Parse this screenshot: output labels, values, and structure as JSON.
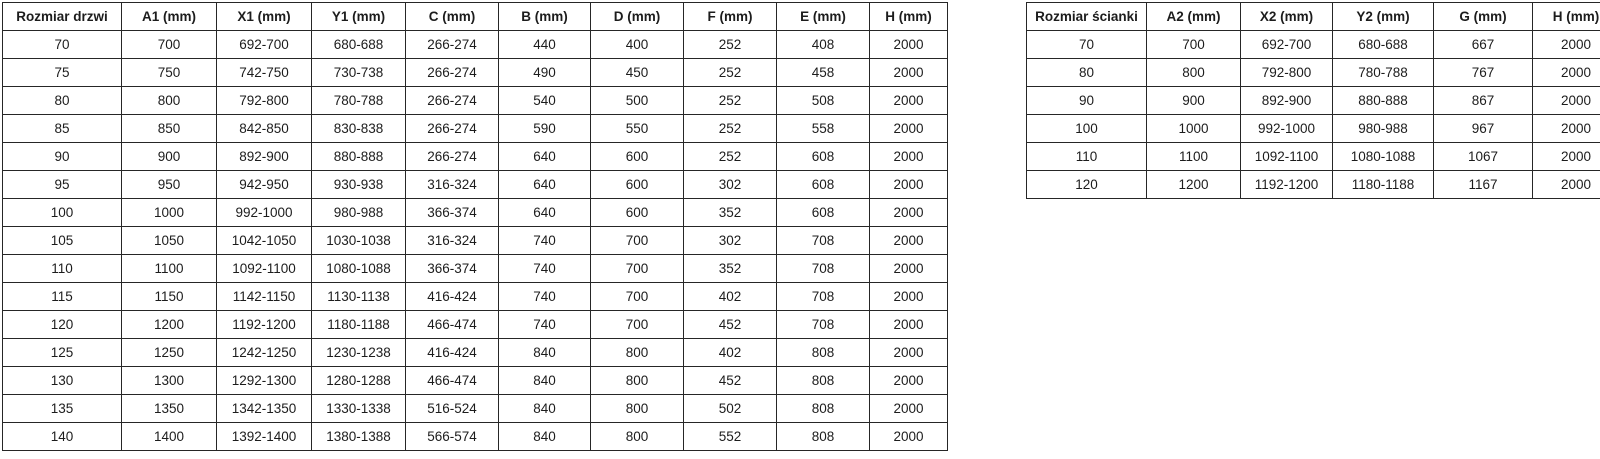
{
  "colors": {
    "background": "#ffffff",
    "border": "#262626",
    "text": "#1c1c1c"
  },
  "tables": {
    "door": {
      "title": "door-sizes-specification",
      "columns": [
        "Rozmiar drzwi",
        "A1 (mm)",
        "X1 (mm)",
        "Y1 (mm)",
        "C (mm)",
        "B (mm)",
        "D (mm)",
        "F (mm)",
        "E (mm)",
        "H (mm)"
      ],
      "rows": [
        [
          "70",
          "700",
          "692-700",
          "680-688",
          "266-274",
          "440",
          "400",
          "252",
          "408",
          "2000"
        ],
        [
          "75",
          "750",
          "742-750",
          "730-738",
          "266-274",
          "490",
          "450",
          "252",
          "458",
          "2000"
        ],
        [
          "80",
          "800",
          "792-800",
          "780-788",
          "266-274",
          "540",
          "500",
          "252",
          "508",
          "2000"
        ],
        [
          "85",
          "850",
          "842-850",
          "830-838",
          "266-274",
          "590",
          "550",
          "252",
          "558",
          "2000"
        ],
        [
          "90",
          "900",
          "892-900",
          "880-888",
          "266-274",
          "640",
          "600",
          "252",
          "608",
          "2000"
        ],
        [
          "95",
          "950",
          "942-950",
          "930-938",
          "316-324",
          "640",
          "600",
          "302",
          "608",
          "2000"
        ],
        [
          "100",
          "1000",
          "992-1000",
          "980-988",
          "366-374",
          "640",
          "600",
          "352",
          "608",
          "2000"
        ],
        [
          "105",
          "1050",
          "1042-1050",
          "1030-1038",
          "316-324",
          "740",
          "700",
          "302",
          "708",
          "2000"
        ],
        [
          "110",
          "1100",
          "1092-1100",
          "1080-1088",
          "366-374",
          "740",
          "700",
          "352",
          "708",
          "2000"
        ],
        [
          "115",
          "1150",
          "1142-1150",
          "1130-1138",
          "416-424",
          "740",
          "700",
          "402",
          "708",
          "2000"
        ],
        [
          "120",
          "1200",
          "1192-1200",
          "1180-1188",
          "466-474",
          "740",
          "700",
          "452",
          "708",
          "2000"
        ],
        [
          "125",
          "1250",
          "1242-1250",
          "1230-1238",
          "416-424",
          "840",
          "800",
          "402",
          "808",
          "2000"
        ],
        [
          "130",
          "1300",
          "1292-1300",
          "1280-1288",
          "466-474",
          "840",
          "800",
          "452",
          "808",
          "2000"
        ],
        [
          "135",
          "1350",
          "1342-1350",
          "1330-1338",
          "516-524",
          "840",
          "800",
          "502",
          "808",
          "2000"
        ],
        [
          "140",
          "1400",
          "1392-1400",
          "1380-1388",
          "566-574",
          "840",
          "800",
          "552",
          "808",
          "2000"
        ]
      ]
    },
    "wall": {
      "title": "wall-sizes-specification",
      "columns": [
        "Rozmiar ścianki",
        "A2 (mm)",
        "X2 (mm)",
        "Y2 (mm)",
        "G (mm)",
        "H (mm)"
      ],
      "rows": [
        [
          "70",
          "700",
          "692-700",
          "680-688",
          "667",
          "2000"
        ],
        [
          "80",
          "800",
          "792-800",
          "780-788",
          "767",
          "2000"
        ],
        [
          "90",
          "900",
          "892-900",
          "880-888",
          "867",
          "2000"
        ],
        [
          "100",
          "1000",
          "992-1000",
          "980-988",
          "967",
          "2000"
        ],
        [
          "110",
          "1100",
          "1092-1100",
          "1080-1088",
          "1067",
          "2000"
        ],
        [
          "120",
          "1200",
          "1192-1200",
          "1180-1188",
          "1167",
          "2000"
        ]
      ]
    }
  }
}
